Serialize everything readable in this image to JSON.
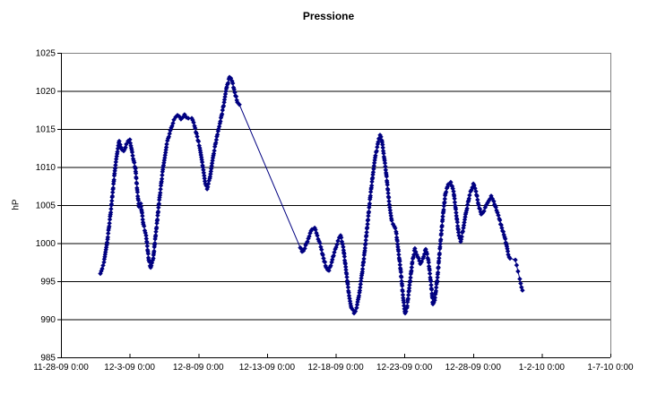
{
  "page": {
    "background": "#ffffff"
  },
  "chart_data": {
    "type": "line",
    "title": "Pressione",
    "ylabel": "hP",
    "xlabel": "",
    "marker": "diamond",
    "grid": "horizontal",
    "legend_position": "none",
    "ylim": [
      985,
      1025
    ],
    "y_ticks": [
      985,
      990,
      995,
      1000,
      1005,
      1010,
      1015,
      1020,
      1025
    ],
    "x_range_days": [
      0,
      40
    ],
    "x_ticks": {
      "days": [
        0,
        5,
        10,
        15,
        20,
        25,
        30,
        35,
        40
      ],
      "labels": [
        "11-28-09 0:00",
        "12-3-09 0:00",
        "12-8-09 0:00",
        "12-13-09 0:00",
        "12-18-09 0:00",
        "12-23-09 0:00",
        "12-28-09 0:00",
        "1-2-10 0:00",
        "1-7-10 0:00"
      ]
    },
    "colors": {
      "series": "#000080",
      "gridline": "#000000",
      "plot_border": "#808080",
      "axis": "#000000",
      "text": "#000000",
      "background": "#ffffff"
    },
    "gap_segment_days": [
      12.99,
      17.42
    ],
    "sparse_marker_after_day": 32.6,
    "series": [
      {
        "name": "Pressione",
        "points": [
          [
            2.87,
            996.0
          ],
          [
            3.13,
            997.5
          ],
          [
            3.39,
            1000.5
          ],
          [
            3.65,
            1004.5
          ],
          [
            3.92,
            1009.5
          ],
          [
            4.11,
            1012.0
          ],
          [
            4.24,
            1013.4
          ],
          [
            4.44,
            1012.3
          ],
          [
            4.57,
            1012.1
          ],
          [
            4.76,
            1013.0
          ],
          [
            5.02,
            1013.6
          ],
          [
            5.22,
            1011.5
          ],
          [
            5.42,
            1009.8
          ],
          [
            5.55,
            1007.0
          ],
          [
            5.68,
            1004.8
          ],
          [
            5.81,
            1005.2
          ],
          [
            6.0,
            1002.5
          ],
          [
            6.2,
            1001.0
          ],
          [
            6.39,
            997.8
          ],
          [
            6.53,
            996.8
          ],
          [
            6.72,
            998.0
          ],
          [
            6.92,
            1001.5
          ],
          [
            7.18,
            1006.0
          ],
          [
            7.44,
            1010.0
          ],
          [
            7.7,
            1013.0
          ],
          [
            7.96,
            1014.8
          ],
          [
            8.22,
            1016.2
          ],
          [
            8.48,
            1016.8
          ],
          [
            8.74,
            1016.3
          ],
          [
            9.0,
            1016.9
          ],
          [
            9.27,
            1016.4
          ],
          [
            9.53,
            1016.4
          ],
          [
            9.72,
            1015.4
          ],
          [
            9.92,
            1014.0
          ],
          [
            10.11,
            1012.5
          ],
          [
            10.31,
            1010.2
          ],
          [
            10.51,
            1007.8
          ],
          [
            10.64,
            1007.1
          ],
          [
            10.83,
            1008.5
          ],
          [
            11.09,
            1011.5
          ],
          [
            11.35,
            1014.0
          ],
          [
            11.61,
            1016.0
          ],
          [
            11.88,
            1018.5
          ],
          [
            12.07,
            1020.5
          ],
          [
            12.27,
            1021.8
          ],
          [
            12.46,
            1021.3
          ],
          [
            12.66,
            1019.8
          ],
          [
            12.85,
            1018.5
          ],
          [
            12.99,
            1018.2
          ],
          [
            17.42,
            999.4
          ],
          [
            17.55,
            998.9
          ],
          [
            17.75,
            999.3
          ],
          [
            18.01,
            1000.6
          ],
          [
            18.27,
            1001.8
          ],
          [
            18.47,
            1002.0
          ],
          [
            18.66,
            1001.0
          ],
          [
            18.92,
            999.5
          ],
          [
            19.12,
            998.0
          ],
          [
            19.31,
            996.8
          ],
          [
            19.51,
            996.4
          ],
          [
            19.71,
            997.5
          ],
          [
            19.9,
            998.8
          ],
          [
            20.16,
            1000.3
          ],
          [
            20.36,
            1001.0
          ],
          [
            20.55,
            999.5
          ],
          [
            20.75,
            996.5
          ],
          [
            20.95,
            993.5
          ],
          [
            21.14,
            991.5
          ],
          [
            21.34,
            990.8
          ],
          [
            21.53,
            991.5
          ],
          [
            21.73,
            993.5
          ],
          [
            21.92,
            996.0
          ],
          [
            22.12,
            999.0
          ],
          [
            22.32,
            1002.5
          ],
          [
            22.51,
            1006.0
          ],
          [
            22.71,
            1009.0
          ],
          [
            22.9,
            1011.5
          ],
          [
            23.1,
            1013.3
          ],
          [
            23.23,
            1014.2
          ],
          [
            23.36,
            1013.5
          ],
          [
            23.49,
            1011.8
          ],
          [
            23.69,
            1009.0
          ],
          [
            23.88,
            1005.5
          ],
          [
            24.08,
            1003.0
          ],
          [
            24.27,
            1002.2
          ],
          [
            24.4,
            1001.5
          ],
          [
            24.53,
            999.5
          ],
          [
            24.73,
            996.5
          ],
          [
            24.93,
            992.5
          ],
          [
            25.06,
            990.8
          ],
          [
            25.19,
            991.5
          ],
          [
            25.38,
            994.5
          ],
          [
            25.58,
            997.5
          ],
          [
            25.77,
            999.3
          ],
          [
            25.97,
            998.2
          ],
          [
            26.16,
            997.3
          ],
          [
            26.36,
            998.0
          ],
          [
            26.56,
            999.2
          ],
          [
            26.75,
            997.8
          ],
          [
            26.95,
            994.5
          ],
          [
            27.08,
            992.0
          ],
          [
            27.21,
            992.5
          ],
          [
            27.41,
            995.5
          ],
          [
            27.6,
            999.5
          ],
          [
            27.8,
            1003.5
          ],
          [
            27.99,
            1006.5
          ],
          [
            28.19,
            1007.7
          ],
          [
            28.38,
            1008.0
          ],
          [
            28.58,
            1006.8
          ],
          [
            28.77,
            1004.0
          ],
          [
            28.97,
            1001.0
          ],
          [
            29.1,
            1000.2
          ],
          [
            29.3,
            1002.0
          ],
          [
            29.49,
            1004.0
          ],
          [
            29.75,
            1006.3
          ],
          [
            30.02,
            1007.8
          ],
          [
            30.21,
            1006.8
          ],
          [
            30.41,
            1005.0
          ],
          [
            30.6,
            1003.8
          ],
          [
            30.8,
            1004.2
          ],
          [
            31.06,
            1005.3
          ],
          [
            31.32,
            1006.2
          ],
          [
            31.51,
            1005.5
          ],
          [
            31.71,
            1004.3
          ],
          [
            31.91,
            1003.2
          ],
          [
            32.1,
            1002.0
          ],
          [
            32.3,
            1000.8
          ],
          [
            32.43,
            999.8
          ],
          [
            32.56,
            998.5
          ],
          [
            32.69,
            998.0
          ],
          [
            33.08,
            997.8
          ],
          [
            33.27,
            996.3
          ],
          [
            33.4,
            995.3
          ],
          [
            33.47,
            994.7
          ],
          [
            33.53,
            994.2
          ],
          [
            33.6,
            993.8
          ]
        ]
      }
    ]
  }
}
